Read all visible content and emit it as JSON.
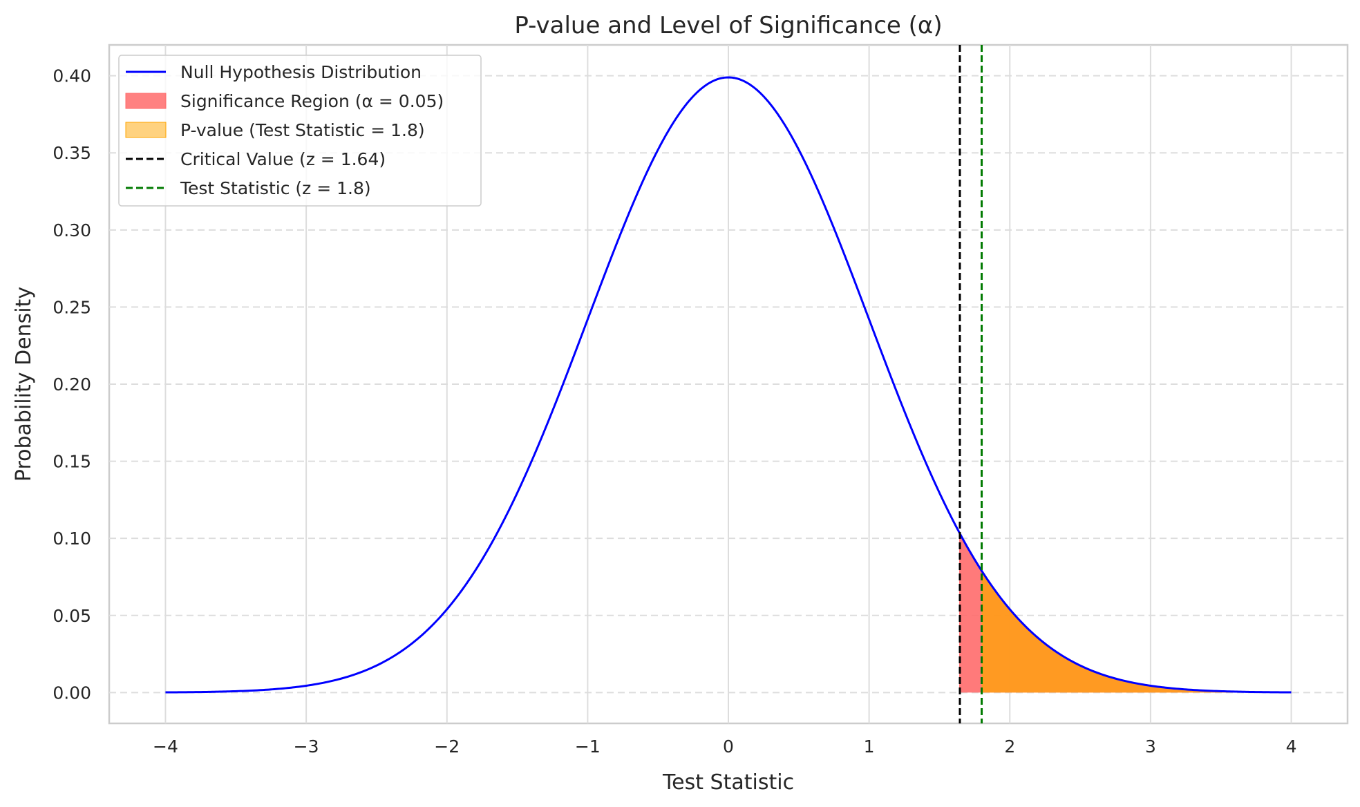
{
  "chart_data": {
    "type": "line",
    "title": "P-value and Level of Significance (α)",
    "xlabel": "Test Statistic",
    "ylabel": "Probability Density",
    "xlim": [
      -4.4,
      4.4
    ],
    "ylim": [
      -0.02,
      0.42
    ],
    "xticks": [
      -4,
      -3,
      -2,
      -1,
      0,
      1,
      2,
      3,
      4
    ],
    "xtick_labels": [
      "−4",
      "−3",
      "−2",
      "−1",
      "0",
      "1",
      "2",
      "3",
      "4"
    ],
    "yticks": [
      0.0,
      0.05,
      0.1,
      0.15,
      0.2,
      0.25,
      0.3,
      0.35,
      0.4
    ],
    "ytick_labels": [
      "0.00",
      "0.05",
      "0.10",
      "0.15",
      "0.20",
      "0.25",
      "0.30",
      "0.35",
      "0.40"
    ],
    "grid": true,
    "legend_position": "top-left",
    "distribution": {
      "name": "Null Hypothesis Distribution",
      "kind": "standard normal pdf",
      "x_range": [
        -4,
        4
      ],
      "color": "#0000ff"
    },
    "regions": [
      {
        "name": "Significance Region (α = 0.05)",
        "x_from": 1.64,
        "x_to": 4,
        "color": "#ff6b6b"
      },
      {
        "name": "P-value (Test Statistic = 1.8)",
        "x_from": 1.8,
        "x_to": 4,
        "color": "#ffa600"
      }
    ],
    "vlines": [
      {
        "name": "Critical Value (z = 1.64)",
        "x": 1.645,
        "color": "#000000",
        "style": "dashed"
      },
      {
        "name": "Test Statistic (z = 1.8)",
        "x": 1.8,
        "color": "#007a00",
        "style": "dashed"
      }
    ]
  }
}
